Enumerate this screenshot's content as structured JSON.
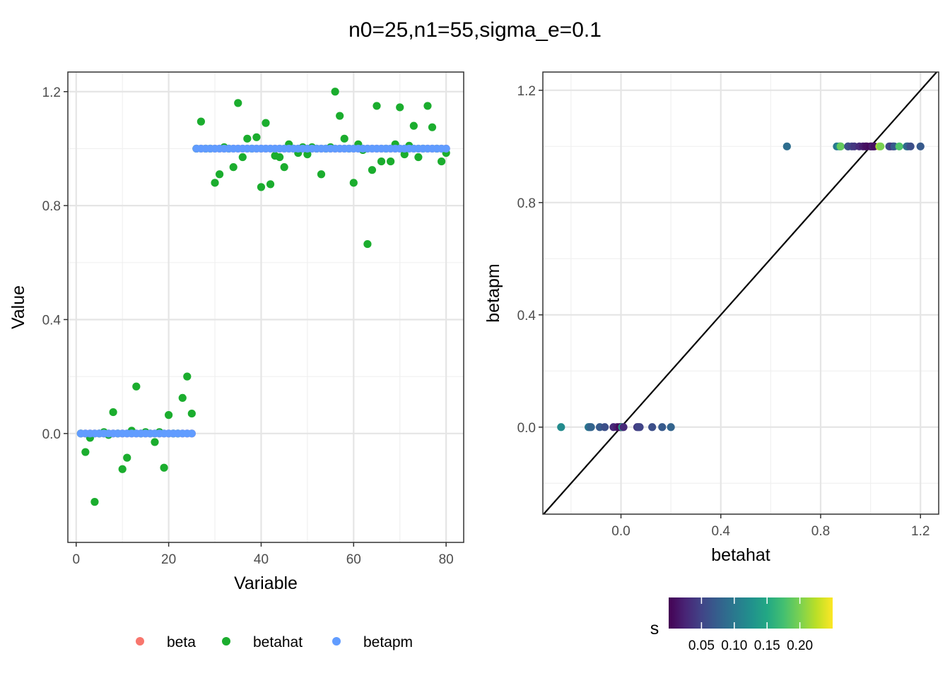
{
  "title": "n0=25,n1=55,sigma_e=0.1",
  "chart_data": [
    {
      "type": "scatter",
      "panel": "left",
      "xlabel": "Variable",
      "ylabel": "Value",
      "xlim": [
        -1.8,
        83.8
      ],
      "ylim": [
        -0.3822,
        1.2688
      ],
      "xticks": [
        0,
        20,
        40,
        60,
        80
      ],
      "xtick_labels": [
        "0",
        "20",
        "40",
        "60",
        "80"
      ],
      "yticks": [
        0.0,
        0.4,
        0.8,
        1.2
      ],
      "ytick_labels": [
        "0.0",
        "0.4",
        "0.8",
        "1.2"
      ],
      "grid": true,
      "legend": {
        "position": "bottom",
        "entries": [
          {
            "label": "beta",
            "color": "#F8766D"
          },
          {
            "label": "betahat",
            "color": "#1BAD2E"
          },
          {
            "label": "betapm",
            "color": "#619CFF"
          }
        ]
      },
      "series": [
        {
          "name": "beta",
          "color": "#F8766D",
          "x": [
            1,
            2,
            3,
            4,
            5,
            6,
            7,
            8,
            9,
            10,
            11,
            12,
            13,
            14,
            15,
            16,
            17,
            18,
            19,
            20,
            21,
            22,
            23,
            24,
            25,
            26,
            27,
            28,
            29,
            30,
            31,
            32,
            33,
            34,
            35,
            36,
            37,
            38,
            39,
            40,
            41,
            42,
            43,
            44,
            45,
            46,
            47,
            48,
            49,
            50,
            51,
            52,
            53,
            54,
            55,
            56,
            57,
            58,
            59,
            60,
            61,
            62,
            63,
            64,
            65,
            66,
            67,
            68,
            69,
            70,
            71,
            72,
            73,
            74,
            75,
            76,
            77,
            78,
            79,
            80
          ],
          "y": [
            0,
            0,
            0,
            0,
            0,
            0,
            0,
            0,
            0,
            0,
            0,
            0,
            0,
            0,
            0,
            0,
            0,
            0,
            0,
            0,
            0,
            0,
            0,
            0,
            0,
            1,
            1,
            1,
            1,
            1,
            1,
            1,
            1,
            1,
            1,
            1,
            1,
            1,
            1,
            1,
            1,
            1,
            1,
            1,
            1,
            1,
            1,
            1,
            1,
            1,
            1,
            1,
            1,
            1,
            1,
            1,
            1,
            1,
            1,
            1,
            1,
            1,
            1,
            1,
            1,
            1,
            1,
            1,
            1,
            1,
            1,
            1,
            1,
            1,
            1,
            1,
            1,
            1,
            1,
            1
          ]
        },
        {
          "name": "betahat",
          "color": "#1BAD2E",
          "x": [
            1,
            2,
            3,
            4,
            5,
            6,
            7,
            8,
            9,
            10,
            11,
            12,
            13,
            14,
            15,
            16,
            17,
            18,
            19,
            20,
            21,
            22,
            23,
            24,
            25,
            26,
            27,
            28,
            29,
            30,
            31,
            32,
            33,
            34,
            35,
            36,
            37,
            38,
            39,
            40,
            41,
            42,
            43,
            44,
            45,
            46,
            47,
            48,
            49,
            50,
            51,
            52,
            53,
            54,
            55,
            56,
            57,
            58,
            59,
            60,
            61,
            62,
            63,
            64,
            65,
            66,
            67,
            68,
            69,
            70,
            71,
            72,
            73,
            74,
            75,
            76,
            77,
            78,
            79,
            80
          ],
          "y": [
            0.0,
            -0.065,
            -0.015,
            -0.24,
            0.0,
            0.005,
            -0.005,
            0.075,
            0.0,
            -0.125,
            -0.085,
            0.01,
            0.165,
            0.0,
            0.005,
            0.0,
            -0.03,
            0.005,
            -0.12,
            0.065,
            0.0,
            0.0,
            0.125,
            0.2,
            0.07,
            1.0,
            1.095,
            1.0,
            1.0,
            0.88,
            0.91,
            1.005,
            1.0,
            0.935,
            1.16,
            0.97,
            1.035,
            1.0,
            1.04,
            0.865,
            1.09,
            0.875,
            0.975,
            0.97,
            0.935,
            1.015,
            1.0,
            0.985,
            1.005,
            0.98,
            1.005,
            1.0,
            0.91,
            1.0,
            1.005,
            1.2,
            1.115,
            1.035,
            1.0,
            0.88,
            1.015,
            0.995,
            0.665,
            0.925,
            1.15,
            0.955,
            1.0,
            0.955,
            1.015,
            1.145,
            0.98,
            1.01,
            1.08,
            0.97,
            1.0,
            1.15,
            1.075,
            1.0,
            0.955,
            0.985
          ]
        },
        {
          "name": "betapm",
          "color": "#619CFF",
          "x": [
            1,
            2,
            3,
            4,
            5,
            6,
            7,
            8,
            9,
            10,
            11,
            12,
            13,
            14,
            15,
            16,
            17,
            18,
            19,
            20,
            21,
            22,
            23,
            24,
            25,
            26,
            27,
            28,
            29,
            30,
            31,
            32,
            33,
            34,
            35,
            36,
            37,
            38,
            39,
            40,
            41,
            42,
            43,
            44,
            45,
            46,
            47,
            48,
            49,
            50,
            51,
            52,
            53,
            54,
            55,
            56,
            57,
            58,
            59,
            60,
            61,
            62,
            63,
            64,
            65,
            66,
            67,
            68,
            69,
            70,
            71,
            72,
            73,
            74,
            75,
            76,
            77,
            78,
            79,
            80
          ],
          "y": [
            0,
            0,
            0,
            0,
            0,
            0,
            0,
            0,
            0,
            0,
            0,
            0,
            0,
            0,
            0,
            0,
            0,
            0,
            0,
            0,
            0,
            0,
            0,
            0,
            0,
            1,
            1,
            1,
            1,
            1,
            1,
            1,
            1,
            1,
            1,
            1,
            1,
            1,
            1,
            1,
            1,
            1,
            1,
            1,
            1,
            1,
            1,
            1,
            1,
            1,
            1,
            1,
            1,
            1,
            1,
            1,
            1,
            1,
            1,
            1,
            1,
            1,
            1,
            1,
            1,
            1,
            1,
            1,
            1,
            1,
            1,
            1,
            1,
            1,
            1,
            1,
            1,
            1,
            1,
            1
          ]
        }
      ]
    },
    {
      "type": "scatter",
      "panel": "right",
      "xlabel": "betahat",
      "ylabel": "betapm",
      "xlim": [
        -0.313,
        1.273
      ],
      "ylim": [
        -0.31,
        1.265
      ],
      "xticks": [
        0.0,
        0.4,
        0.8,
        1.2
      ],
      "xtick_labels": [
        "0.0",
        "0.4",
        "0.8",
        "1.2"
      ],
      "yticks": [
        0.0,
        0.4,
        0.8,
        1.2
      ],
      "ytick_labels": [
        "0.0",
        "0.4",
        "0.8",
        "1.2"
      ],
      "grid": true,
      "reference_line": {
        "intercept": 0,
        "slope": 1,
        "color": "#000000"
      },
      "color_legend": {
        "title": "s",
        "position": "bottom",
        "range": [
          0.0,
          0.25
        ],
        "ticks": [
          0.05,
          0.1,
          0.15,
          0.2
        ],
        "tick_labels": [
          "0.05",
          "0.10",
          "0.15",
          "0.20"
        ],
        "palette": [
          "#440154",
          "#482475",
          "#414487",
          "#355F8D",
          "#2A788E",
          "#21908D",
          "#22A884",
          "#43BF71",
          "#7AD151",
          "#BBDF27",
          "#FDE725"
        ]
      },
      "points": [
        {
          "betahat": -0.24,
          "betapm": 0.0,
          "s": 0.12
        },
        {
          "betahat": -0.13,
          "betapm": 0.0,
          "s": 0.1
        },
        {
          "betahat": -0.125,
          "betapm": 0.0,
          "s": 0.09
        },
        {
          "betahat": -0.12,
          "betapm": 0.0,
          "s": 0.08
        },
        {
          "betahat": -0.085,
          "betapm": 0.0,
          "s": 0.07
        },
        {
          "betahat": -0.065,
          "betapm": 0.0,
          "s": 0.06
        },
        {
          "betahat": -0.03,
          "betapm": 0.0,
          "s": 0.03
        },
        {
          "betahat": -0.015,
          "betapm": 0.0,
          "s": 0.02
        },
        {
          "betahat": -0.005,
          "betapm": 0.0,
          "s": 0.005
        },
        {
          "betahat": 0.0,
          "betapm": 0.0,
          "s": 0.01
        },
        {
          "betahat": 0.005,
          "betapm": 0.0,
          "s": 0.15
        },
        {
          "betahat": 0.01,
          "betapm": 0.0,
          "s": 0.03
        },
        {
          "betahat": 0.065,
          "betapm": 0.0,
          "s": 0.04
        },
        {
          "betahat": 0.07,
          "betapm": 0.0,
          "s": 0.05
        },
        {
          "betahat": 0.075,
          "betapm": 0.0,
          "s": 0.05
        },
        {
          "betahat": 0.125,
          "betapm": 0.0,
          "s": 0.06
        },
        {
          "betahat": 0.165,
          "betapm": 0.0,
          "s": 0.07
        },
        {
          "betahat": 0.2,
          "betapm": 0.0,
          "s": 0.08
        },
        {
          "betahat": 0.665,
          "betapm": 1.0,
          "s": 0.09
        },
        {
          "betahat": 0.865,
          "betapm": 1.0,
          "s": 0.1
        },
        {
          "betahat": 0.875,
          "betapm": 1.0,
          "s": 0.12
        },
        {
          "betahat": 0.88,
          "betapm": 1.0,
          "s": 0.14
        },
        {
          "betahat": 0.88,
          "betapm": 1.0,
          "s": 0.19
        },
        {
          "betahat": 0.91,
          "betapm": 1.0,
          "s": 0.08
        },
        {
          "betahat": 0.91,
          "betapm": 1.0,
          "s": 0.06
        },
        {
          "betahat": 0.925,
          "betapm": 1.0,
          "s": 0.05
        },
        {
          "betahat": 0.935,
          "betapm": 1.0,
          "s": 0.04
        },
        {
          "betahat": 0.955,
          "betapm": 1.0,
          "s": 0.03
        },
        {
          "betahat": 0.97,
          "betapm": 1.0,
          "s": 0.02
        },
        {
          "betahat": 0.98,
          "betapm": 1.0,
          "s": 0.015
        },
        {
          "betahat": 0.985,
          "betapm": 1.0,
          "s": 0.01
        },
        {
          "betahat": 1.0,
          "betapm": 1.0,
          "s": 0.005
        },
        {
          "betahat": 1.005,
          "betapm": 1.0,
          "s": 0.01
        },
        {
          "betahat": 1.01,
          "betapm": 1.0,
          "s": 0.02
        },
        {
          "betahat": 1.015,
          "betapm": 1.0,
          "s": 0.01
        },
        {
          "betahat": 1.035,
          "betapm": 1.0,
          "s": 0.22
        },
        {
          "betahat": 1.04,
          "betapm": 1.0,
          "s": 0.2
        },
        {
          "betahat": 1.075,
          "betapm": 1.0,
          "s": 0.06
        },
        {
          "betahat": 1.08,
          "betapm": 1.0,
          "s": 0.05
        },
        {
          "betahat": 1.09,
          "betapm": 1.0,
          "s": 0.04
        },
        {
          "betahat": 1.095,
          "betapm": 1.0,
          "s": 0.07
        },
        {
          "betahat": 1.115,
          "betapm": 1.0,
          "s": 0.18
        },
        {
          "betahat": 1.145,
          "betapm": 1.0,
          "s": 0.1
        },
        {
          "betahat": 1.15,
          "betapm": 1.0,
          "s": 0.08
        },
        {
          "betahat": 1.16,
          "betapm": 1.0,
          "s": 0.06
        },
        {
          "betahat": 1.2,
          "betapm": 1.0,
          "s": 0.07
        }
      ]
    }
  ]
}
